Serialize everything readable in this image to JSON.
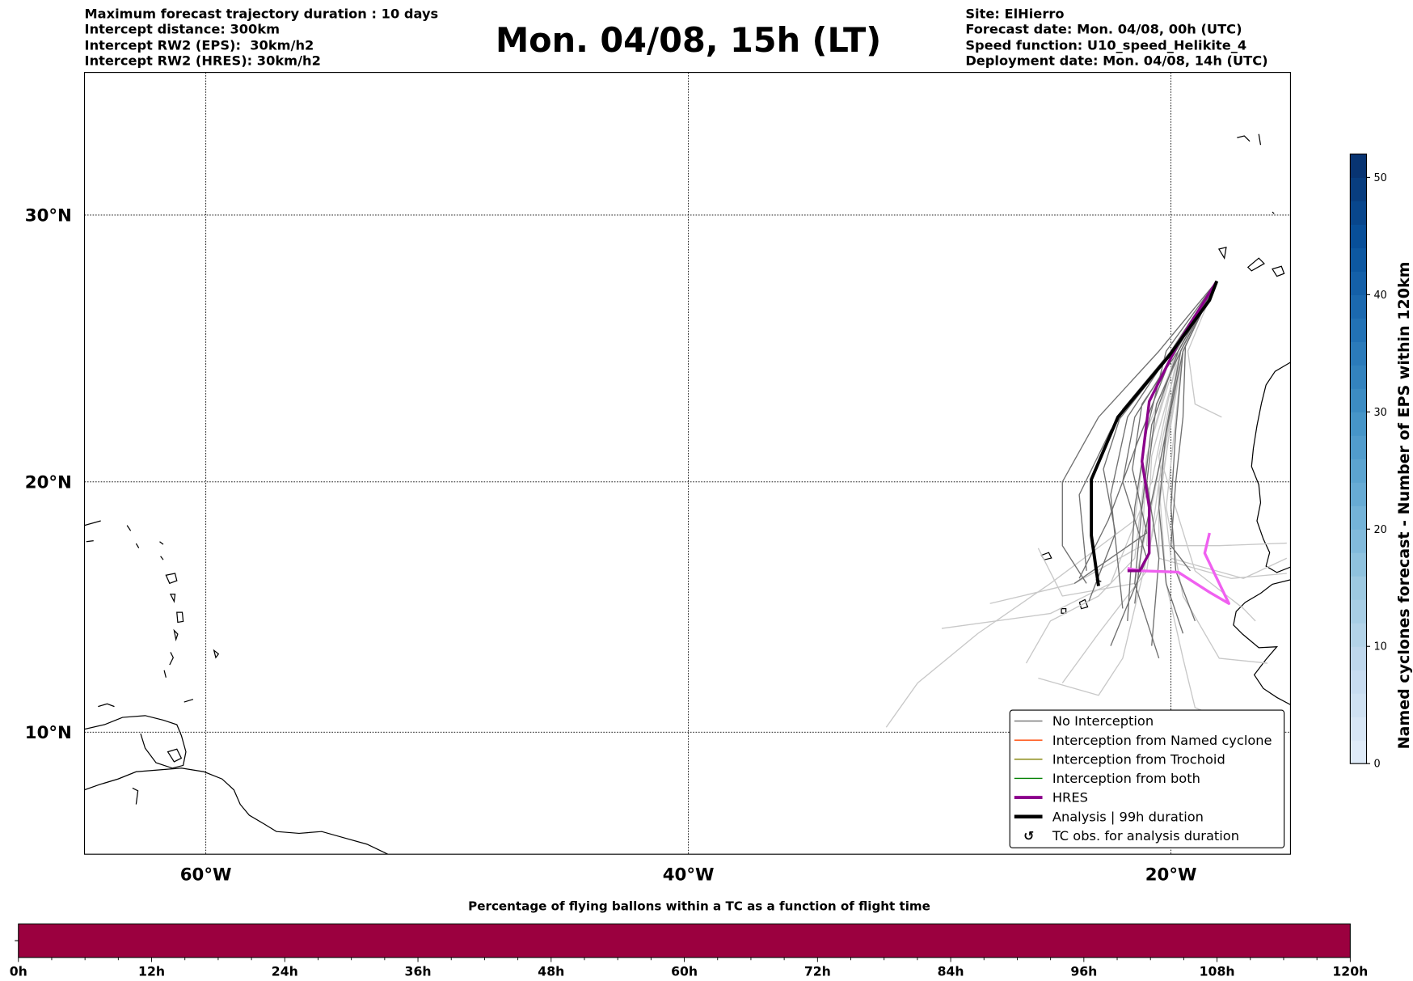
{
  "header": {
    "left": [
      "Maximum forecast trajectory duration : 10 days",
      "Intercept distance: 300km",
      "Intercept RW2 (EPS):  30km/h2",
      "Intercept RW2 (HRES): 30km/h2"
    ],
    "title": "Mon. 04/08, 15h (LT)",
    "right": [
      "Site: ElHierro",
      "Forecast date: Mon. 04/08, 00h (UTC)",
      "Speed function: U10_speed_Helikite_4",
      "Deployment date: Mon. 04/08, 14h (UTC)"
    ]
  },
  "colors": {
    "no_interception": "#707070",
    "no_interception_light": "#c8c8c8",
    "named_cyclone": "#ff4500",
    "trochoid": "#808000",
    "both": "#008000",
    "hres": "#8b008b",
    "hres_alt": "#f060f0",
    "analysis": "#000000",
    "bar_fill": "#9b003f"
  },
  "chart_data": [
    {
      "type": "line",
      "title": "Mon. 04/08, 15h (LT)",
      "projection": "mercator",
      "xlim": [
        -65,
        -15
      ],
      "ylim": [
        5,
        35
      ],
      "grid": true,
      "xticks": [
        -60,
        -40,
        -20
      ],
      "xtick_labels": [
        "60°W",
        "40°W",
        "20°W"
      ],
      "yticks": [
        10,
        20,
        30
      ],
      "ytick_labels": [
        "10°N",
        "20°N",
        "30°N"
      ],
      "legend_position": "lower-right",
      "legend": [
        {
          "label": "No Interception",
          "style": "no_interception"
        },
        {
          "label": "Interception from Named cyclone",
          "style": "named_cyclone"
        },
        {
          "label": "Interception from Trochoid",
          "style": "trochoid"
        },
        {
          "label": "Interception from both",
          "style": "both"
        },
        {
          "label": "HRES",
          "style": "hres"
        },
        {
          "label": "Analysis | 99h duration",
          "style": "analysis"
        },
        {
          "label": "TC obs. for analysis duration",
          "style": "tc_obs"
        }
      ],
      "tc_obs_symbol": "↺",
      "analysis": [
        [
          -18.1,
          27.6
        ],
        [
          -18.4,
          26.9
        ],
        [
          -20.1,
          24.8
        ],
        [
          -22.2,
          22.5
        ],
        [
          -23.3,
          20.1
        ],
        [
          -23.3,
          17.9
        ],
        [
          -23.0,
          15.9
        ]
      ],
      "hres": [
        [
          -18.1,
          27.6
        ],
        [
          -19.7,
          25.3
        ],
        [
          -20.9,
          23.1
        ],
        [
          -21.2,
          20.8
        ],
        [
          -20.9,
          19.0
        ],
        [
          -20.9,
          17.2
        ],
        [
          -21.3,
          16.5
        ],
        [
          -21.8,
          16.5
        ]
      ],
      "hres_alt": [
        [
          -18.4,
          18.0
        ],
        [
          -18.6,
          17.2
        ],
        [
          -18.05,
          16.1
        ],
        [
          -17.6,
          15.2
        ],
        [
          -18.4,
          15.65
        ],
        [
          -19.7,
          16.45
        ],
        [
          -21.2,
          16.5
        ],
        [
          -21.8,
          16.6
        ]
      ],
      "ensemble_dark": [
        [
          [
            -18.1,
            27.6
          ],
          [
            -19.9,
            25
          ],
          [
            -22.5,
            22
          ],
          [
            -23.8,
            19.5
          ],
          [
            -23.5,
            16.5
          ]
        ],
        [
          [
            -18.1,
            27.6
          ],
          [
            -20,
            25
          ],
          [
            -21.8,
            22.5
          ],
          [
            -22.5,
            19.5
          ],
          [
            -22,
            15
          ]
        ],
        [
          [
            -18.1,
            27.6
          ],
          [
            -20.2,
            25
          ],
          [
            -21,
            22
          ],
          [
            -21.5,
            19
          ],
          [
            -21.8,
            14.5
          ]
        ],
        [
          [
            -18.1,
            27.6
          ],
          [
            -19.6,
            25
          ],
          [
            -20.2,
            22
          ],
          [
            -20.5,
            19
          ],
          [
            -20.2,
            16
          ],
          [
            -19.5,
            14
          ]
        ],
        [
          [
            -18.1,
            27.6
          ],
          [
            -19.5,
            25
          ],
          [
            -19.8,
            22
          ],
          [
            -20,
            19
          ],
          [
            -19.8,
            16.5
          ],
          [
            -19,
            14.5
          ]
        ],
        [
          [
            -18.1,
            27.6
          ],
          [
            -20.5,
            25
          ],
          [
            -23,
            22.5
          ],
          [
            -24.5,
            20
          ],
          [
            -24.5,
            17.5
          ],
          [
            -23.5,
            16
          ]
        ],
        [
          [
            -18.1,
            27.6
          ],
          [
            -19.8,
            25
          ],
          [
            -21.5,
            22.5
          ],
          [
            -22,
            20
          ],
          [
            -21,
            17
          ],
          [
            -22.5,
            13.5
          ]
        ],
        [
          [
            -18.1,
            27.6
          ],
          [
            -19.6,
            25
          ],
          [
            -20.6,
            23
          ],
          [
            -21,
            20
          ],
          [
            -20.5,
            17
          ],
          [
            -20.8,
            13.5
          ]
        ],
        [
          [
            -18.1,
            27.6
          ],
          [
            -19.4,
            25.2
          ],
          [
            -19.5,
            22.5
          ],
          [
            -19.8,
            20
          ],
          [
            -20,
            17.5
          ],
          [
            -19.2,
            16.5
          ]
        ],
        [
          [
            -18.1,
            27.6
          ],
          [
            -20,
            25
          ],
          [
            -22,
            22.8
          ],
          [
            -22.8,
            20.5
          ],
          [
            -22.3,
            18
          ],
          [
            -23.4,
            15.3
          ]
        ],
        [
          [
            -18.1,
            27.6
          ],
          [
            -19.7,
            25
          ],
          [
            -20.8,
            22.2
          ],
          [
            -21.2,
            19
          ],
          [
            -21.5,
            16
          ],
          [
            -20.5,
            13
          ]
        ],
        [
          [
            -18.1,
            27.6
          ],
          [
            -19.7,
            25
          ],
          [
            -21.2,
            23
          ],
          [
            -21.6,
            20.5
          ],
          [
            -21,
            18
          ],
          [
            -24,
            16
          ]
        ],
        [
          [
            -18.1,
            27.6
          ],
          [
            -19.9,
            25
          ],
          [
            -21.4,
            21.5
          ],
          [
            -22.6,
            18.5
          ],
          [
            -23.8,
            16.2
          ]
        ],
        [
          [
            -18.1,
            27.6
          ],
          [
            -19.5,
            25
          ],
          [
            -20.4,
            21
          ],
          [
            -21.2,
            17.5
          ],
          [
            -21.5,
            15.2
          ]
        ]
      ],
      "ensemble_light": [
        [
          [
            -18.1,
            27.6
          ],
          [
            -19.7,
            25
          ],
          [
            -21,
            22
          ],
          [
            -21.5,
            18.5
          ],
          [
            -25,
            16
          ],
          [
            -28,
            14
          ],
          [
            -30.5,
            12
          ],
          [
            -31.8,
            10.2
          ]
        ],
        [
          [
            -18.1,
            27.6
          ],
          [
            -19.3,
            25
          ],
          [
            -19,
            23
          ],
          [
            -17.9,
            22.5
          ]
        ],
        [
          [
            -18.1,
            27.6
          ],
          [
            -19.8,
            25
          ],
          [
            -21,
            21
          ],
          [
            -21.2,
            17.5
          ],
          [
            -24,
            16
          ],
          [
            -27.5,
            15.2
          ]
        ],
        [
          [
            -18.1,
            27.6
          ],
          [
            -19.6,
            25
          ],
          [
            -20.5,
            21
          ],
          [
            -20,
            17
          ],
          [
            -17,
            16.2
          ],
          [
            -15.2,
            17
          ]
        ],
        [
          [
            -18.1,
            27.6
          ],
          [
            -19.6,
            25
          ],
          [
            -20.8,
            21
          ],
          [
            -21,
            17.5
          ],
          [
            -18,
            17.5
          ],
          [
            -15.2,
            17.6
          ]
        ],
        [
          [
            -18.1,
            27.6
          ],
          [
            -19.7,
            25
          ],
          [
            -21,
            21
          ],
          [
            -21.5,
            17
          ],
          [
            -23,
            15.5
          ],
          [
            -25,
            14.5
          ],
          [
            -26,
            12.8
          ]
        ],
        [
          [
            -18.1,
            27.6
          ],
          [
            -19.5,
            25
          ],
          [
            -20.5,
            20
          ],
          [
            -20.2,
            16
          ],
          [
            -19.5,
            13
          ],
          [
            -19,
            11
          ],
          [
            -18,
            10.6
          ]
        ],
        [
          [
            -18.1,
            27.6
          ],
          [
            -19.6,
            25
          ],
          [
            -20.5,
            20
          ],
          [
            -21,
            16.5
          ],
          [
            -23,
            14
          ],
          [
            -24.5,
            12
          ]
        ],
        [
          [
            -18.1,
            27.6
          ],
          [
            -19.5,
            25
          ],
          [
            -20.3,
            20.5
          ],
          [
            -19,
            16.5
          ],
          [
            -17,
            15
          ],
          [
            -16.5,
            14.5
          ]
        ],
        [
          [
            -18.1,
            27.6
          ],
          [
            -19.7,
            25
          ],
          [
            -20.8,
            20
          ],
          [
            -22.5,
            16
          ],
          [
            -25,
            14.8
          ],
          [
            -29.5,
            14.2
          ]
        ],
        [
          [
            -18.1,
            27.6
          ],
          [
            -19.6,
            25
          ],
          [
            -20.5,
            20
          ],
          [
            -20.5,
            17
          ],
          [
            -17.5,
            16.2
          ],
          [
            -15.2,
            16.4
          ]
        ],
        [
          [
            -18.1,
            27.6
          ],
          [
            -19.6,
            25
          ],
          [
            -20.5,
            19
          ],
          [
            -22,
            13
          ],
          [
            -23,
            11.5
          ],
          [
            -25.5,
            12.2
          ]
        ],
        [
          [
            -18.1,
            27.6
          ],
          [
            -19.6,
            25
          ],
          [
            -20.7,
            19.5
          ],
          [
            -21.5,
            16
          ],
          [
            -24.5,
            15.5
          ],
          [
            -25.5,
            17.4
          ]
        ],
        [
          [
            -18.1,
            27.6
          ],
          [
            -19.5,
            25
          ],
          [
            -20.2,
            19
          ],
          [
            -19.5,
            15.5
          ],
          [
            -18,
            13
          ],
          [
            -16,
            12.8
          ]
        ]
      ]
    },
    {
      "type": "heatmap",
      "role": "colorbar",
      "label": "Named cyclones forecast - Number of EPS within 120km",
      "range": [
        0,
        52
      ],
      "step": 2,
      "ticks": [
        0,
        10,
        20,
        30,
        40,
        50
      ],
      "colormap": [
        "#e3eef9",
        "#c6dbef",
        "#9ecae1",
        "#6baed6",
        "#4292c6",
        "#2171b5",
        "#08519c",
        "#08306b"
      ]
    },
    {
      "type": "bar",
      "title": "Percentage of flying ballons within a TC as a function of flight time",
      "xlim": [
        0,
        120
      ],
      "xticks": [
        0,
        12,
        24,
        36,
        48,
        60,
        72,
        84,
        96,
        108,
        120
      ],
      "xtick_labels": [
        "0h",
        "12h",
        "24h",
        "36h",
        "48h",
        "60h",
        "72h",
        "84h",
        "96h",
        "108h",
        "120h"
      ],
      "minor_step": 3,
      "values_uniform_percent": 0
    }
  ]
}
